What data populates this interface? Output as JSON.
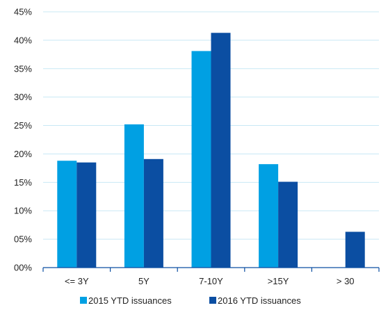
{
  "chart_data": {
    "type": "bar",
    "categories": [
      "<= 3Y",
      "5Y",
      "7-10Y",
      ">15Y",
      "> 30"
    ],
    "series": [
      {
        "name": "2015 YTD issuances",
        "values": [
          18.8,
          25.2,
          38.1,
          18.2,
          0
        ],
        "color": "#00a0e3"
      },
      {
        "name": "2016 YTD issuances",
        "values": [
          18.5,
          19.1,
          41.3,
          15.1,
          6.3
        ],
        "color": "#0b4ea2"
      }
    ],
    "yticks": [
      "00%",
      "05%",
      "10%",
      "15%",
      "20%",
      "25%",
      "30%",
      "35%",
      "40%",
      "45%"
    ],
    "ylim": [
      0,
      45
    ],
    "grid": true,
    "gridColor": "#c8e8f5",
    "axisColor": "#0b4ea2",
    "legend_position": "bottom"
  }
}
